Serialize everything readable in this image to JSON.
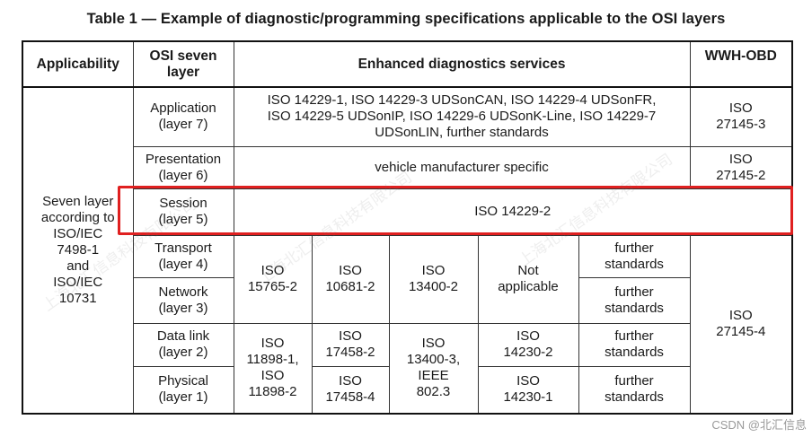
{
  "title": "Table 1 — Example of diagnostic/programming specifications applicable to the OSI layers",
  "headers": {
    "applicability": "Applicability",
    "osi": "OSI seven\nlayer",
    "enhanced": "Enhanced diagnostics services",
    "wwh": "WWH-OBD"
  },
  "applicability_text": "Seven layer\naccording to\nISO/IEC\n7498-1\nand\nISO/IEC\n10731",
  "layers": {
    "application": "Application\n(layer 7)",
    "presentation": "Presentation\n(layer 6)",
    "session": "Session\n(layer 5)",
    "transport": "Transport\n(layer 4)",
    "network": "Network\n(layer 3)",
    "datalink": "Data link\n(layer 2)",
    "physical": "Physical\n(layer 1)"
  },
  "enhanced": {
    "application": "ISO 14229-1, ISO 14229-3 UDSonCAN, ISO 14229-4 UDSonFR,\nISO 14229-5 UDSonIP, ISO 14229-6 UDSonK-Line, ISO 14229-7\nUDSonLIN, further standards",
    "presentation": "vehicle manufacturer specific",
    "session": "ISO 14229-2",
    "tn_col1": "ISO\n15765-2",
    "tn_col2": "ISO\n10681-2",
    "tn_col3": "ISO\n13400-2",
    "tn_col4": "Not\napplicable",
    "transport_col5": "further\nstandards",
    "network_col5": "further\nstandards",
    "dp_col1": "ISO\n11898-1,\nISO\n11898-2",
    "datalink_col2": "ISO\n17458-2",
    "physical_col2": "ISO\n17458-4",
    "dp_col3": "ISO\n13400-3,\nIEEE\n802.3",
    "datalink_col4": "ISO\n14230-2",
    "physical_col4": "ISO\n14230-1",
    "datalink_col5": "further\nstandards",
    "physical_col5": "further\nstandards"
  },
  "wwh": {
    "application": "ISO\n27145-3",
    "presentation": "ISO\n27145-2",
    "lower": "ISO\n27145-4"
  },
  "watermark": "上海北汇信息科技有限公司",
  "footer": "CSDN @北汇信息",
  "highlight_color": "#e02020"
}
